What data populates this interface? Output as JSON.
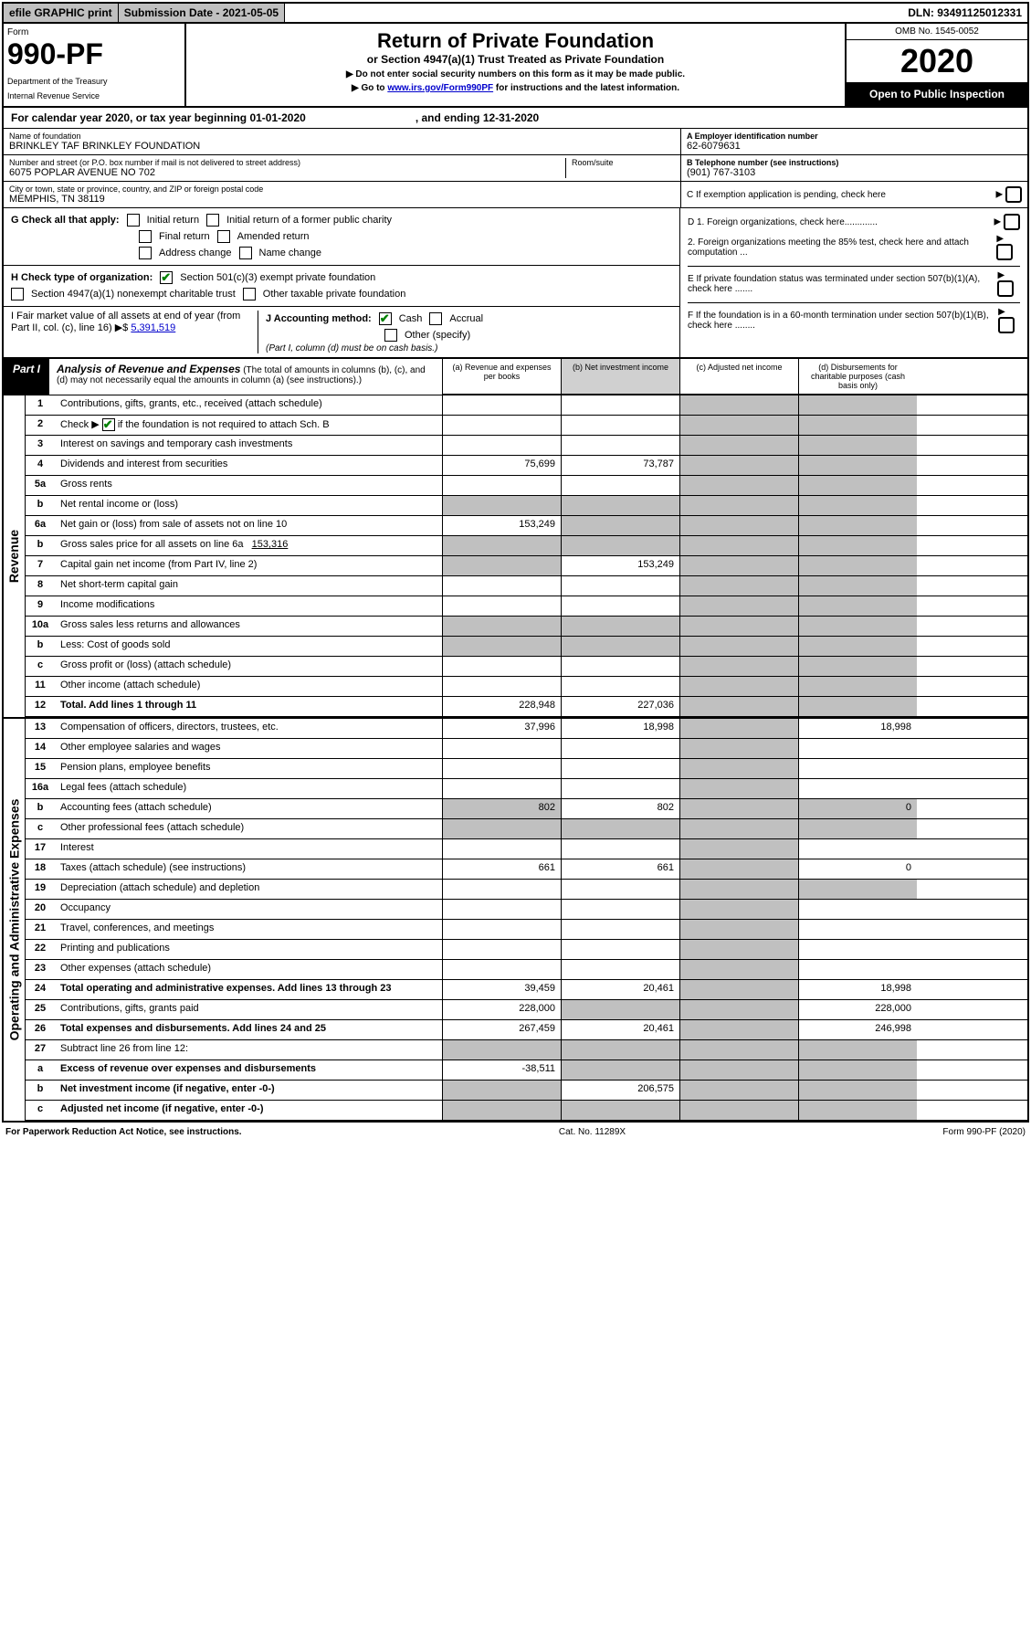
{
  "topbar": {
    "efile": "efile GRAPHIC print",
    "subdate_label": "Submission Date - 2021-05-05",
    "dln": "DLN: 93491125012331"
  },
  "header": {
    "form_word": "Form",
    "form_num": "990-PF",
    "dept": "Department of the Treasury",
    "irs": "Internal Revenue Service",
    "title": "Return of Private Foundation",
    "subtitle": "or Section 4947(a)(1) Trust Treated as Private Foundation",
    "note1": "▶ Do not enter social security numbers on this form as it may be made public.",
    "note2": "▶ Go to ",
    "link": "www.irs.gov/Form990PF",
    "note3": " for instructions and the latest information.",
    "omb": "OMB No. 1545-0052",
    "year": "2020",
    "open": "Open to Public Inspection"
  },
  "cal": {
    "a": "For calendar year 2020, or tax year beginning 01-01-2020",
    "b": ", and ending 12-31-2020"
  },
  "info": {
    "name_label": "Name of foundation",
    "name": "BRINKLEY TAF BRINKLEY FOUNDATION",
    "addr_label": "Number and street (or P.O. box number if mail is not delivered to street address)",
    "addr": "6075 POPLAR AVENUE NO 702",
    "room": "Room/suite",
    "city_label": "City or town, state or province, country, and ZIP or foreign postal code",
    "city": "MEMPHIS, TN  38119",
    "a_label": "A Employer identification number",
    "a": "62-6079631",
    "b_label": "B Telephone number (see instructions)",
    "b": "(901) 767-3103",
    "c": "C If exemption application is pending, check here"
  },
  "g": {
    "label": "G Check all that apply:",
    "i1": "Initial return",
    "i2": "Initial return of a former public charity",
    "i3": "Final return",
    "i4": "Amended return",
    "i5": "Address change",
    "i6": "Name change"
  },
  "h": {
    "label": "H Check type of organization:",
    "o1": "Section 501(c)(3) exempt private foundation",
    "o2": "Section 4947(a)(1) nonexempt charitable trust",
    "o3": "Other taxable private foundation"
  },
  "i": {
    "label": "I Fair market value of all assets at end of year (from Part II, col. (c), line 16) ▶$ ",
    "val": "5,391,519"
  },
  "j": {
    "label": "J Accounting method:",
    "o1": "Cash",
    "o2": "Accrual",
    "o3": "Other (specify)",
    "note": "(Part I, column (d) must be on cash basis.)"
  },
  "right": {
    "d1": "D 1. Foreign organizations, check here.............",
    "d2": "2. Foreign organizations meeting the 85% test, check here and attach computation ...",
    "e": "E  If private foundation status was terminated under section 507(b)(1)(A), check here .......",
    "f": "F  If the foundation is in a 60-month termination under section 507(b)(1)(B), check here ........"
  },
  "part1": {
    "label": "Part I",
    "title": "Analysis of Revenue and Expenses",
    "note": "(The total of amounts in columns (b), (c), and (d) may not necessarily equal the amounts in column (a) (see instructions).)"
  },
  "cols": {
    "a": "(a)   Revenue and expenses per books",
    "b": "(b)  Net investment income",
    "c": "(c)  Adjusted net income",
    "d": "(d)  Disbursements for charitable purposes (cash basis only)"
  },
  "rev": "Revenue",
  "opex": "Operating and Administrative Expenses",
  "rows": [
    {
      "n": "1",
      "d": "Contributions, gifts, grants, etc., received (attach schedule)"
    },
    {
      "n": "2",
      "d": "Check ▶ ",
      "chk": true,
      "d2": " if the foundation is not required to attach Sch. B"
    },
    {
      "n": "3",
      "d": "Interest on savings and temporary cash investments"
    },
    {
      "n": "4",
      "d": "Dividends and interest from securities",
      "a": "75,699",
      "b": "73,787"
    },
    {
      "n": "5a",
      "d": "Gross rents"
    },
    {
      "n": "b",
      "d": "Net rental income or (loss)"
    },
    {
      "n": "6a",
      "d": "Net gain or (loss) from sale of assets not on line 10",
      "a": "153,249"
    },
    {
      "n": "b",
      "d": "Gross sales price for all assets on line 6a ",
      "u": "153,316"
    },
    {
      "n": "7",
      "d": "Capital gain net income (from Part IV, line 2)",
      "b": "153,249"
    },
    {
      "n": "8",
      "d": "Net short-term capital gain"
    },
    {
      "n": "9",
      "d": "Income modifications"
    },
    {
      "n": "10a",
      "d": "Gross sales less returns and allowances"
    },
    {
      "n": "b",
      "d": "Less: Cost of goods sold"
    },
    {
      "n": "c",
      "d": "Gross profit or (loss) (attach schedule)"
    },
    {
      "n": "11",
      "d": "Other income (attach schedule)"
    },
    {
      "n": "12",
      "d": "Total. Add lines 1 through 11",
      "bold": true,
      "a": "228,948",
      "b": "227,036"
    }
  ],
  "oprows": [
    {
      "n": "13",
      "d": "Compensation of officers, directors, trustees, etc.",
      "a": "37,996",
      "b": "18,998",
      "dd": "18,998"
    },
    {
      "n": "14",
      "d": "Other employee salaries and wages"
    },
    {
      "n": "15",
      "d": "Pension plans, employee benefits"
    },
    {
      "n": "16a",
      "d": "Legal fees (attach schedule)"
    },
    {
      "n": "b",
      "d": "Accounting fees (attach schedule)",
      "a": "802",
      "b": "802",
      "dd": "0"
    },
    {
      "n": "c",
      "d": "Other professional fees (attach schedule)"
    },
    {
      "n": "17",
      "d": "Interest"
    },
    {
      "n": "18",
      "d": "Taxes (attach schedule) (see instructions)",
      "a": "661",
      "b": "661",
      "dd": "0"
    },
    {
      "n": "19",
      "d": "Depreciation (attach schedule) and depletion"
    },
    {
      "n": "20",
      "d": "Occupancy"
    },
    {
      "n": "21",
      "d": "Travel, conferences, and meetings"
    },
    {
      "n": "22",
      "d": "Printing and publications"
    },
    {
      "n": "23",
      "d": "Other expenses (attach schedule)"
    },
    {
      "n": "24",
      "d": "Total operating and administrative expenses. Add lines 13 through 23",
      "bold": true,
      "a": "39,459",
      "b": "20,461",
      "dd": "18,998"
    },
    {
      "n": "25",
      "d": "Contributions, gifts, grants paid",
      "a": "228,000",
      "dd": "228,000"
    },
    {
      "n": "26",
      "d": "Total expenses and disbursements. Add lines 24 and 25",
      "bold": true,
      "a": "267,459",
      "b": "20,461",
      "dd": "246,998"
    },
    {
      "n": "27",
      "d": "Subtract line 26 from line 12:"
    },
    {
      "n": "a",
      "d": "Excess of revenue over expenses and disbursements",
      "bold": true,
      "a": "-38,511"
    },
    {
      "n": "b",
      "d": "Net investment income (if negative, enter -0-)",
      "bold": true,
      "b": "206,575"
    },
    {
      "n": "c",
      "d": "Adjusted net income (if negative, enter -0-)",
      "bold": true
    }
  ],
  "footer": {
    "a": "For Paperwork Reduction Act Notice, see instructions.",
    "b": "Cat. No. 11289X",
    "c": "Form 990-PF (2020)"
  }
}
